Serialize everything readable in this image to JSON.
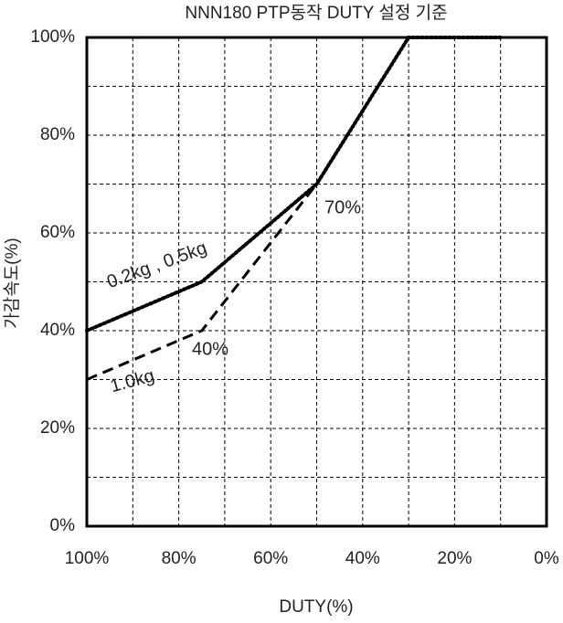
{
  "chart_data": {
    "type": "line",
    "title": "NNN180 PTP동작 DUTY 설정 기준",
    "x_label": "DUTY(%)",
    "y_label": "가감속도(%)",
    "x": [
      100,
      75,
      50,
      30,
      10
    ],
    "series": [
      {
        "color": "#000000",
        "style": "solid",
        "values": [
          40,
          50,
          70,
          100,
          100
        ]
      },
      {
        "color": "#000000",
        "style": "dotted",
        "values": [
          40,
          50,
          70,
          100,
          100
        ]
      },
      {
        "color": "#000000",
        "style": "dashed",
        "values": [
          30,
          40,
          70,
          100,
          100
        ]
      }
    ],
    "xlim": [
      100,
      0
    ],
    "xticks": [
      {
        "value": 100,
        "label": "100%"
      },
      {
        "value": 80,
        "label": "80%"
      },
      {
        "value": 60,
        "label": "60%"
      },
      {
        "value": 40,
        "label": "40%"
      },
      {
        "value": 20,
        "label": "20%"
      },
      {
        "value": 0,
        "label": "0%"
      }
    ],
    "xminor": [
      90,
      70,
      50,
      30,
      10
    ],
    "ylim": [
      0,
      100
    ],
    "yticks": [
      {
        "value": 0,
        "label": "0%"
      },
      {
        "value": 20,
        "label": "20%"
      },
      {
        "value": 40,
        "label": "40%"
      },
      {
        "value": 60,
        "label": "60%"
      },
      {
        "value": 80,
        "label": "80%"
      },
      {
        "value": 100,
        "label": "100%"
      }
    ],
    "yminor": [
      10,
      30,
      50,
      70,
      90
    ],
    "grid": true,
    "annotations": [
      "0.2kg , 0.5kg",
      "1.0kg",
      "70%",
      "40%"
    ]
  }
}
